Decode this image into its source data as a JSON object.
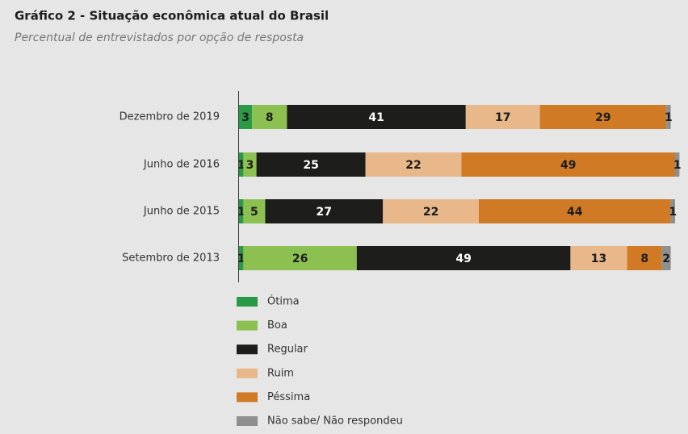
{
  "chart_data": {
    "type": "stacked-bar-horizontal",
    "title": "Gráfico 2 - Situação econômica atual do Brasil",
    "subtitle": "Percentual de entrevistados por opção de resposta",
    "categories": [
      "Dezembro de 2019",
      "Junho de 2016",
      "Junho de 2015",
      "Setembro de 2013"
    ],
    "series": [
      {
        "name": "Ótima",
        "color": "#2a9a47",
        "values": [
          3,
          1,
          1,
          1
        ]
      },
      {
        "name": "Boa",
        "color": "#8cc152",
        "values": [
          8,
          3,
          5,
          26
        ]
      },
      {
        "name": "Regular",
        "color": "#1d1d1b",
        "values": [
          41,
          25,
          27,
          49
        ]
      },
      {
        "name": "Ruim",
        "color": "#e8b88a",
        "values": [
          17,
          22,
          22,
          13
        ]
      },
      {
        "name": "Péssima",
        "color": "#d07a26",
        "values": [
          29,
          49,
          44,
          8
        ]
      },
      {
        "name": "Não sabe/ Não respondeu",
        "color": "#8f8f8f",
        "values": [
          1,
          1,
          1,
          2
        ]
      }
    ]
  }
}
